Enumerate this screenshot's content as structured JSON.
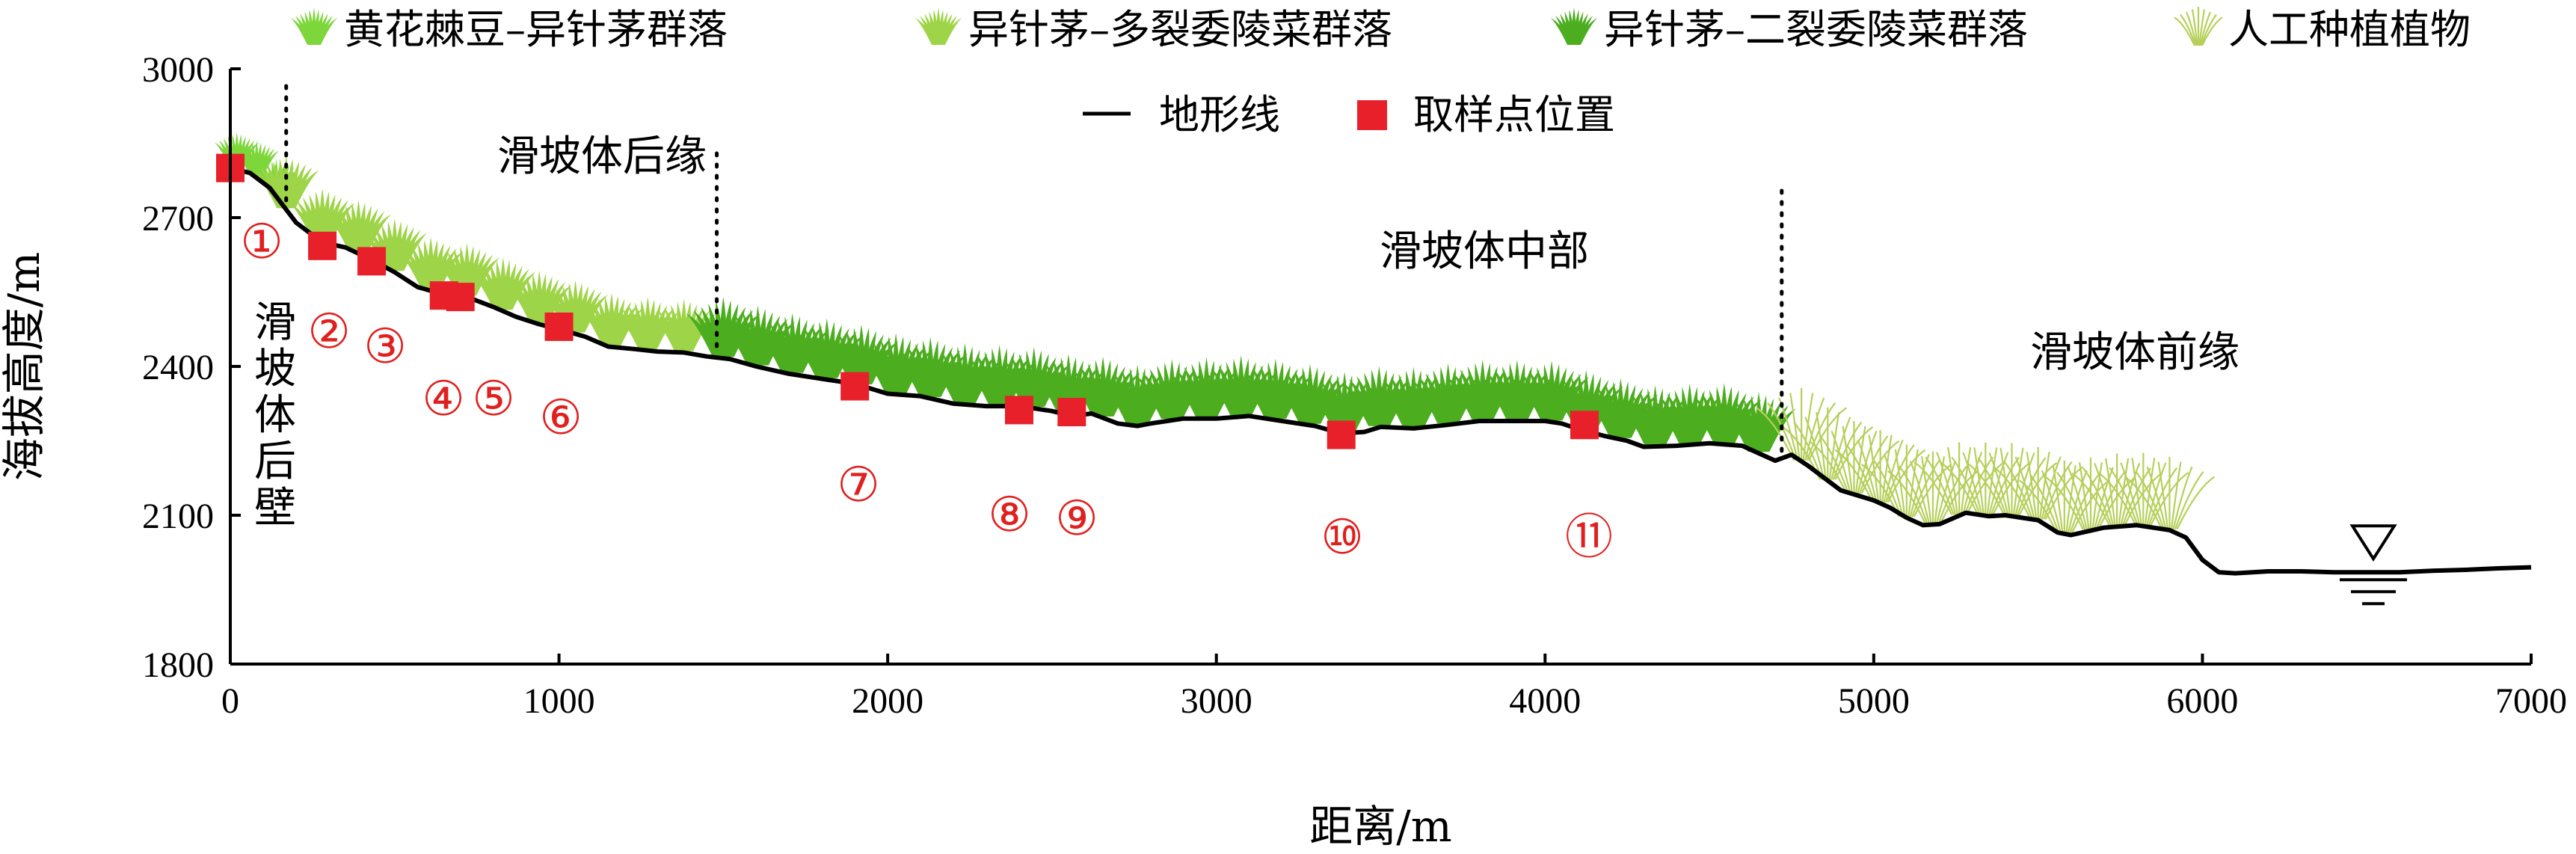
{
  "chart_data": {
    "type": "line",
    "xlabel": "距离/m",
    "ylabel": "海拔高度/m",
    "xlim": [
      0,
      7000
    ],
    "ylim": [
      1800,
      3000
    ],
    "x_ticks": [
      0,
      1000,
      2000,
      3000,
      4000,
      5000,
      6000,
      7000
    ],
    "y_ticks": [
      1800,
      2100,
      2400,
      2700,
      3000
    ],
    "grid": false,
    "legend": {
      "placement": "top",
      "entries": [
        {
          "label": "黄花棘豆–异针茅群落",
          "symbol": "grass-icon",
          "color": "#7dd63a"
        },
        {
          "label": "异针茅–多裂委陵菜群落",
          "symbol": "grass-icon",
          "color": "#9ed447"
        },
        {
          "label": "异针茅–二裂委陵菜群落",
          "symbol": "grass-icon",
          "color": "#4cad1f"
        },
        {
          "label": "人工种植植物",
          "symbol": "grass-icon",
          "color": "#b6cf5a"
        },
        {
          "label": "地形线",
          "symbol": "line",
          "color": "#000000"
        },
        {
          "label": "取样点位置",
          "symbol": "square",
          "color": "#e8202a"
        }
      ]
    },
    "series": [
      {
        "name": "地形线",
        "x": [
          0,
          60,
          120,
          200,
          280,
          350,
          430,
          500,
          570,
          650,
          720,
          800,
          870,
          940,
          1000,
          1080,
          1150,
          1230,
          1300,
          1380,
          1450,
          1520,
          1600,
          1700,
          1800,
          1900,
          2000,
          2100,
          2200,
          2300,
          2400,
          2500,
          2560,
          2620,
          2700,
          2760,
          2800,
          2850,
          2900,
          3000,
          3100,
          3200,
          3300,
          3380,
          3450,
          3500,
          3600,
          3700,
          3800,
          3900,
          4000,
          4050,
          4120,
          4180,
          4250,
          4300,
          4400,
          4500,
          4600,
          4650,
          4700,
          4750,
          4800,
          4850,
          4900,
          5000,
          5050,
          5100,
          5150,
          5200,
          5280,
          5350,
          5400,
          5500,
          5560,
          5600,
          5700,
          5800,
          5900,
          5950,
          6000,
          6050,
          6100,
          6200,
          6300,
          6400,
          6500,
          6600,
          6700,
          6800,
          6900,
          7000
        ],
        "y": [
          2800,
          2790,
          2760,
          2690,
          2650,
          2640,
          2615,
          2590,
          2560,
          2545,
          2540,
          2520,
          2500,
          2485,
          2475,
          2460,
          2440,
          2435,
          2430,
          2428,
          2420,
          2415,
          2400,
          2385,
          2375,
          2365,
          2345,
          2340,
          2325,
          2320,
          2320,
          2310,
          2300,
          2305,
          2285,
          2280,
          2285,
          2290,
          2295,
          2295,
          2300,
          2290,
          2280,
          2265,
          2268,
          2278,
          2275,
          2282,
          2290,
          2290,
          2290,
          2285,
          2270,
          2260,
          2250,
          2238,
          2240,
          2245,
          2240,
          2225,
          2210,
          2222,
          2200,
          2175,
          2150,
          2130,
          2115,
          2095,
          2080,
          2082,
          2105,
          2098,
          2100,
          2090,
          2065,
          2060,
          2075,
          2080,
          2070,
          2055,
          2010,
          1985,
          1983,
          1987,
          1987,
          1985,
          1985,
          1985,
          1988,
          1990,
          1993,
          1995
        ]
      }
    ],
    "samples": {
      "name": "取样点位置",
      "points": [
        {
          "id": "①",
          "x": 0,
          "y": 2800
        },
        {
          "id": "②",
          "x": 280,
          "y": 2643
        },
        {
          "id": "③",
          "x": 430,
          "y": 2612
        },
        {
          "id": "④",
          "x": 650,
          "y": 2543
        },
        {
          "id": "⑤",
          "x": 700,
          "y": 2540
        },
        {
          "id": "⑥",
          "x": 1000,
          "y": 2480
        },
        {
          "id": "⑦",
          "x": 1900,
          "y": 2360
        },
        {
          "id": "⑧",
          "x": 2400,
          "y": 2312
        },
        {
          "id": "⑨",
          "x": 2560,
          "y": 2308
        },
        {
          "id": "⑩",
          "x": 3380,
          "y": 2262
        },
        {
          "id": "⑪",
          "x": 4120,
          "y": 2282
        }
      ]
    },
    "annotations": {
      "region_labels": [
        "滑坡体后缘",
        "滑坡体中部",
        "滑坡体前缘"
      ],
      "vertical_label": [
        "滑",
        "坡",
        "体",
        "后",
        "壁"
      ],
      "boundaries_x": [
        170,
        1480,
        4720
      ]
    }
  }
}
